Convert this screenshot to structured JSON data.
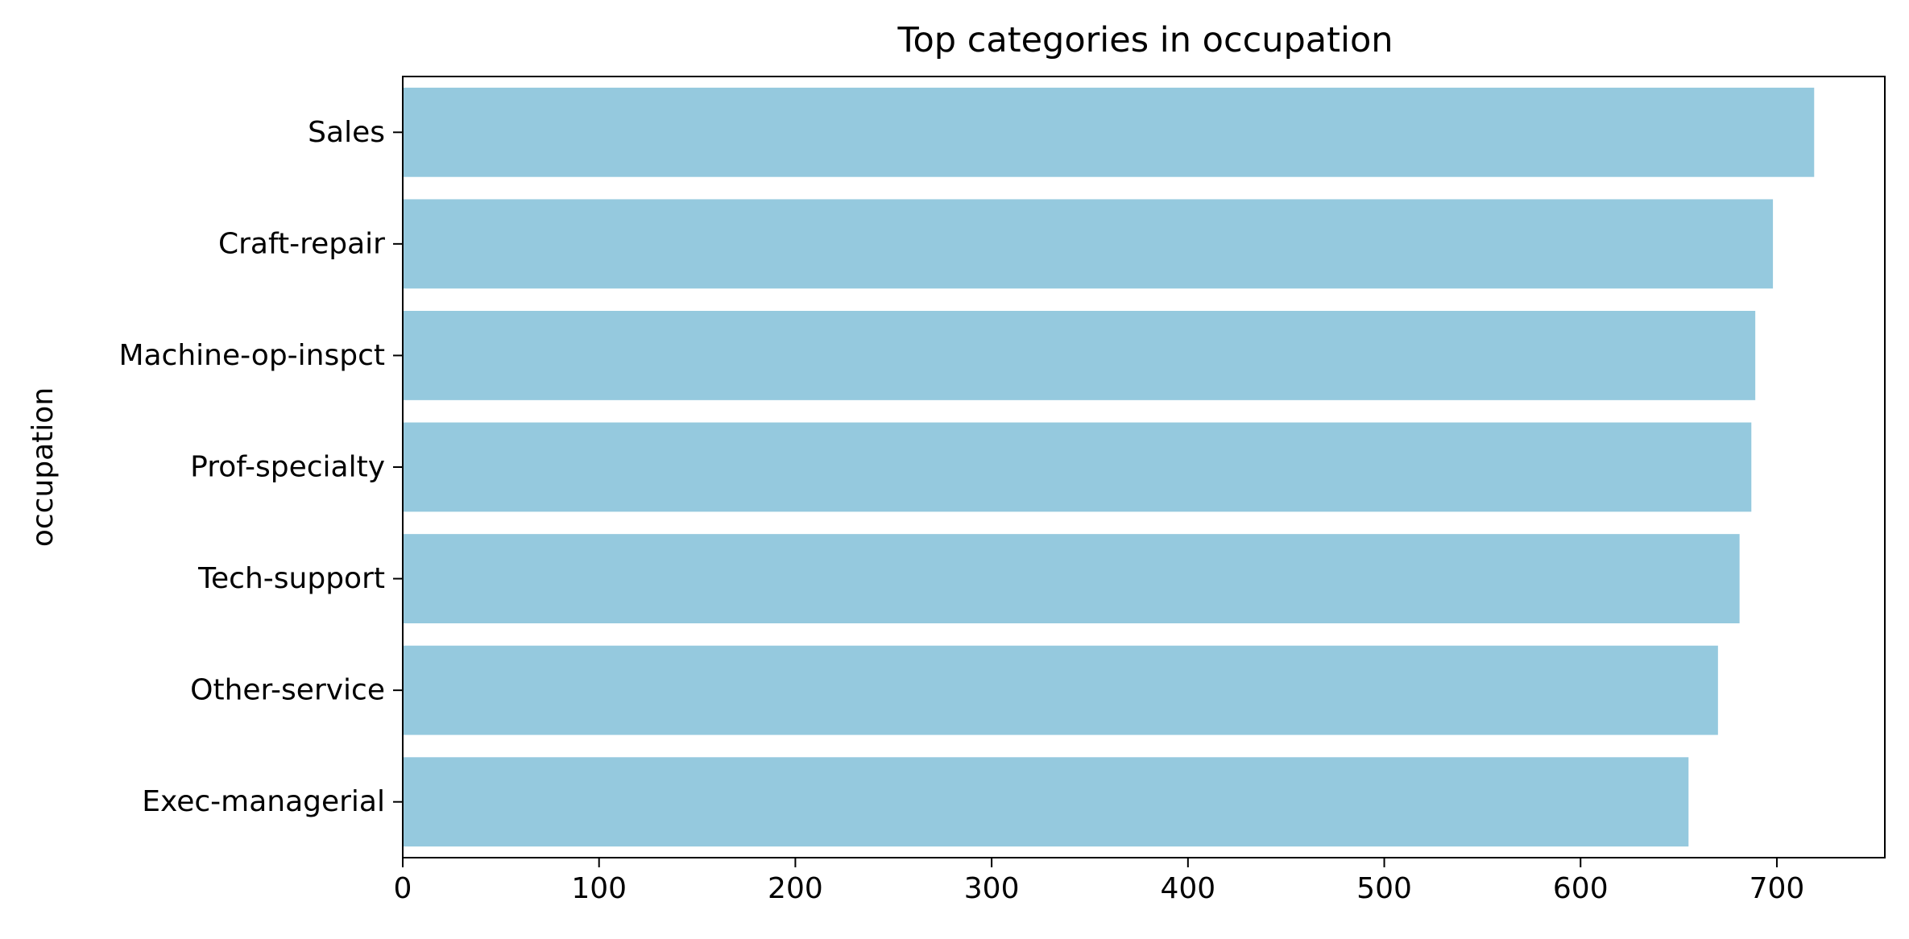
{
  "chart_data": {
    "type": "bar",
    "orientation": "horizontal",
    "title": "Top categories in occupation",
    "xlabel": "",
    "ylabel": "occupation",
    "categories": [
      "Sales",
      "Craft-repair",
      "Machine-op-inspct",
      "Prof-specialty",
      "Tech-support",
      "Other-service",
      "Exec-managerial"
    ],
    "values": [
      719,
      698,
      689,
      687,
      681,
      670,
      655
    ],
    "xlim": [
      0,
      755
    ],
    "xticks": [
      0,
      100,
      200,
      300,
      400,
      500,
      600,
      700
    ],
    "grid": false,
    "colors": {
      "bar": "#95c9de",
      "axis": "#000000",
      "background": "#ffffff"
    }
  }
}
